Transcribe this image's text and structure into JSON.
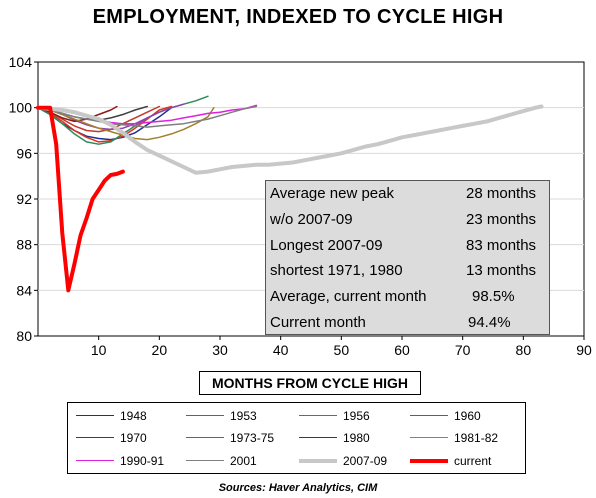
{
  "title": "EMPLOYMENT, INDEXED TO CYCLE HIGH",
  "source": "Sources:  Haver Analytics, CIM",
  "chart_data": {
    "type": "line",
    "title": "EMPLOYMENT, INDEXED TO CYCLE HIGH",
    "xlabel": "MONTHS FROM CYCLE HIGH",
    "ylabel": "",
    "xlim": [
      0,
      90
    ],
    "ylim": [
      80,
      104
    ],
    "x_ticks": [
      "10",
      "20",
      "30",
      "40",
      "50",
      "60",
      "70",
      "80",
      "90"
    ],
    "y_ticks": [
      "80",
      "84",
      "88",
      "92",
      "96",
      "100",
      "104"
    ],
    "grid": true,
    "legend_position": "bottom",
    "series": [
      {
        "name": "1948",
        "color": "#1f2f8f",
        "width": 1.5,
        "points": [
          [
            0,
            100
          ],
          [
            2,
            99.4
          ],
          [
            4,
            98.6
          ],
          [
            6,
            98.0
          ],
          [
            8,
            97.5
          ],
          [
            10,
            97.3
          ],
          [
            12,
            97.2
          ],
          [
            14,
            97.4
          ],
          [
            16,
            97.8
          ],
          [
            18,
            98.5
          ],
          [
            20,
            99.2
          ],
          [
            22,
            100.0
          ]
        ]
      },
      {
        "name": "1953",
        "color": "#e03020",
        "width": 1.5,
        "points": [
          [
            0,
            100
          ],
          [
            2,
            99.5
          ],
          [
            4,
            98.8
          ],
          [
            6,
            98.0
          ],
          [
            8,
            97.4
          ],
          [
            10,
            97.0
          ],
          [
            12,
            97.1
          ],
          [
            14,
            97.5
          ],
          [
            16,
            98.2
          ],
          [
            18,
            99.0
          ],
          [
            20,
            99.8
          ],
          [
            22,
            100.1
          ]
        ]
      },
      {
        "name": "1956",
        "color": "#2e8b57",
        "width": 1.5,
        "points": [
          [
            0,
            100
          ],
          [
            2,
            99.4
          ],
          [
            4,
            98.6
          ],
          [
            6,
            97.7
          ],
          [
            8,
            97.0
          ],
          [
            10,
            96.8
          ],
          [
            12,
            97.0
          ],
          [
            14,
            97.7
          ],
          [
            16,
            98.4
          ],
          [
            18,
            99.1
          ],
          [
            20,
            99.6
          ],
          [
            22,
            100.0
          ],
          [
            24,
            100.3
          ],
          [
            26,
            100.6
          ],
          [
            28,
            101.0
          ]
        ]
      },
      {
        "name": "1960",
        "color": "#c0392b",
        "width": 1.5,
        "points": [
          [
            0,
            100
          ],
          [
            2,
            99.6
          ],
          [
            4,
            99.0
          ],
          [
            6,
            98.4
          ],
          [
            8,
            98.0
          ],
          [
            10,
            97.9
          ],
          [
            12,
            98.1
          ],
          [
            14,
            98.6
          ],
          [
            16,
            99.1
          ],
          [
            18,
            99.6
          ],
          [
            20,
            100.1
          ]
        ]
      },
      {
        "name": "1970",
        "color": "#404040",
        "width": 1.5,
        "points": [
          [
            0,
            100
          ],
          [
            2,
            99.8
          ],
          [
            4,
            99.5
          ],
          [
            6,
            99.2
          ],
          [
            8,
            99.0
          ],
          [
            10,
            98.9
          ],
          [
            12,
            99.1
          ],
          [
            14,
            99.4
          ],
          [
            16,
            99.8
          ],
          [
            18,
            100.1
          ]
        ]
      },
      {
        "name": "1973-75",
        "color": "#8e44ad",
        "width": 1.5,
        "points": [
          [
            0,
            100
          ],
          [
            2,
            99.8
          ],
          [
            4,
            99.4
          ],
          [
            6,
            98.9
          ],
          [
            8,
            98.5
          ],
          [
            10,
            98.2
          ],
          [
            12,
            98.1
          ],
          [
            14,
            98.2
          ],
          [
            16,
            98.6
          ],
          [
            18,
            99.1
          ],
          [
            20,
            99.6
          ],
          [
            22,
            100.0
          ],
          [
            24,
            100.3
          ]
        ]
      },
      {
        "name": "1980",
        "color": "#8b1a1a",
        "width": 1.5,
        "points": [
          [
            0,
            100
          ],
          [
            2,
            99.6
          ],
          [
            4,
            99.1
          ],
          [
            6,
            98.8
          ],
          [
            8,
            99.0
          ],
          [
            10,
            99.4
          ],
          [
            12,
            99.8
          ],
          [
            13,
            100.1
          ]
        ]
      },
      {
        "name": "1981-82",
        "color": "#a0822d",
        "width": 1.5,
        "points": [
          [
            0,
            100
          ],
          [
            2,
            99.8
          ],
          [
            4,
            99.4
          ],
          [
            6,
            99.0
          ],
          [
            8,
            98.6
          ],
          [
            10,
            98.2
          ],
          [
            12,
            97.9
          ],
          [
            14,
            97.6
          ],
          [
            16,
            97.3
          ],
          [
            18,
            97.2
          ],
          [
            20,
            97.4
          ],
          [
            22,
            97.7
          ],
          [
            24,
            98.1
          ],
          [
            26,
            98.6
          ],
          [
            28,
            99.2
          ],
          [
            29,
            100.0
          ]
        ]
      },
      {
        "name": "1990-91",
        "color": "#e020e0",
        "width": 1.5,
        "points": [
          [
            0,
            100
          ],
          [
            2,
            99.9
          ],
          [
            4,
            99.7
          ],
          [
            6,
            99.5
          ],
          [
            8,
            99.2
          ],
          [
            10,
            98.9
          ],
          [
            12,
            98.7
          ],
          [
            14,
            98.6
          ],
          [
            16,
            98.6
          ],
          [
            18,
            98.7
          ],
          [
            20,
            98.8
          ],
          [
            22,
            98.9
          ],
          [
            24,
            99.1
          ],
          [
            26,
            99.3
          ],
          [
            28,
            99.5
          ],
          [
            30,
            99.6
          ],
          [
            32,
            99.8
          ],
          [
            34,
            99.9
          ],
          [
            36,
            100.2
          ]
        ]
      },
      {
        "name": "2001",
        "color": "#7f7f7f",
        "width": 1.5,
        "points": [
          [
            0,
            100
          ],
          [
            2,
            99.8
          ],
          [
            4,
            99.5
          ],
          [
            6,
            99.2
          ],
          [
            8,
            99.0
          ],
          [
            10,
            98.8
          ],
          [
            12,
            98.6
          ],
          [
            14,
            98.5
          ],
          [
            16,
            98.4
          ],
          [
            18,
            98.3
          ],
          [
            20,
            98.4
          ],
          [
            22,
            98.5
          ],
          [
            24,
            98.6
          ],
          [
            26,
            98.8
          ],
          [
            28,
            99.0
          ],
          [
            30,
            99.3
          ],
          [
            32,
            99.6
          ],
          [
            34,
            99.9
          ],
          [
            36,
            100.1
          ]
        ]
      },
      {
        "name": "2007-09",
        "color": "#c8c8c8",
        "width": 4,
        "points": [
          [
            0,
            100
          ],
          [
            2,
            99.9
          ],
          [
            4,
            99.8
          ],
          [
            6,
            99.6
          ],
          [
            8,
            99.3
          ],
          [
            10,
            99.0
          ],
          [
            12,
            98.5
          ],
          [
            14,
            97.8
          ],
          [
            16,
            97.0
          ],
          [
            18,
            96.3
          ],
          [
            20,
            95.8
          ],
          [
            22,
            95.3
          ],
          [
            24,
            94.8
          ],
          [
            26,
            94.3
          ],
          [
            28,
            94.4
          ],
          [
            30,
            94.6
          ],
          [
            32,
            94.8
          ],
          [
            34,
            94.9
          ],
          [
            36,
            95.0
          ],
          [
            38,
            95.0
          ],
          [
            40,
            95.1
          ],
          [
            42,
            95.2
          ],
          [
            44,
            95.4
          ],
          [
            46,
            95.6
          ],
          [
            48,
            95.8
          ],
          [
            50,
            96.0
          ],
          [
            52,
            96.3
          ],
          [
            54,
            96.6
          ],
          [
            56,
            96.8
          ],
          [
            58,
            97.1
          ],
          [
            60,
            97.4
          ],
          [
            62,
            97.6
          ],
          [
            64,
            97.8
          ],
          [
            66,
            98.0
          ],
          [
            68,
            98.2
          ],
          [
            70,
            98.4
          ],
          [
            72,
            98.6
          ],
          [
            74,
            98.8
          ],
          [
            76,
            99.1
          ],
          [
            78,
            99.4
          ],
          [
            80,
            99.7
          ],
          [
            82,
            100.0
          ],
          [
            83,
            100.1
          ]
        ]
      },
      {
        "name": "current",
        "color": "#ff0000",
        "width": 4,
        "points": [
          [
            0,
            100
          ],
          [
            1,
            100
          ],
          [
            2,
            100
          ],
          [
            3,
            96.8
          ],
          [
            4,
            89.0
          ],
          [
            5,
            84.0
          ],
          [
            6,
            86.3
          ],
          [
            7,
            88.8
          ],
          [
            8,
            90.3
          ],
          [
            9,
            92.0
          ],
          [
            10,
            92.8
          ],
          [
            11,
            93.6
          ],
          [
            12,
            94.1
          ],
          [
            13,
            94.2
          ],
          [
            14,
            94.4
          ]
        ]
      }
    ]
  },
  "stats": [
    {
      "label": "Average new peak",
      "value": "28 months"
    },
    {
      "label": "w/o 2007-09",
      "value": "23 months"
    },
    {
      "label": "Longest 2007-09",
      "value": "83 months"
    },
    {
      "label": "shortest  1971, 1980",
      "value": "13 months"
    },
    {
      "label": "Average, current month",
      "value": "98.5%"
    },
    {
      "label": "Current month",
      "value": "94.4%"
    }
  ],
  "legend": [
    {
      "name": "1948",
      "color": "#1f2f8f",
      "width": 1.5
    },
    {
      "name": "1953",
      "color": "#e03020",
      "width": 1.5
    },
    {
      "name": "1956",
      "color": "#2e8b57",
      "width": 1.5
    },
    {
      "name": "1960",
      "color": "#c0392b",
      "width": 1.5
    },
    {
      "name": "1970",
      "color": "#404040",
      "width": 1.5
    },
    {
      "name": "1973-75",
      "color": "#8e44ad",
      "width": 1.5
    },
    {
      "name": "1980",
      "color": "#8b1a1a",
      "width": 1.5
    },
    {
      "name": "1981-82",
      "color": "#a0822d",
      "width": 1.5
    },
    {
      "name": "1990-91",
      "color": "#e020e0",
      "width": 1.5
    },
    {
      "name": "2001",
      "color": "#7f7f7f",
      "width": 1.5
    },
    {
      "name": "2007-09",
      "color": "#c8c8c8",
      "width": 4
    },
    {
      "name": "current",
      "color": "#ff0000",
      "width": 4
    }
  ]
}
